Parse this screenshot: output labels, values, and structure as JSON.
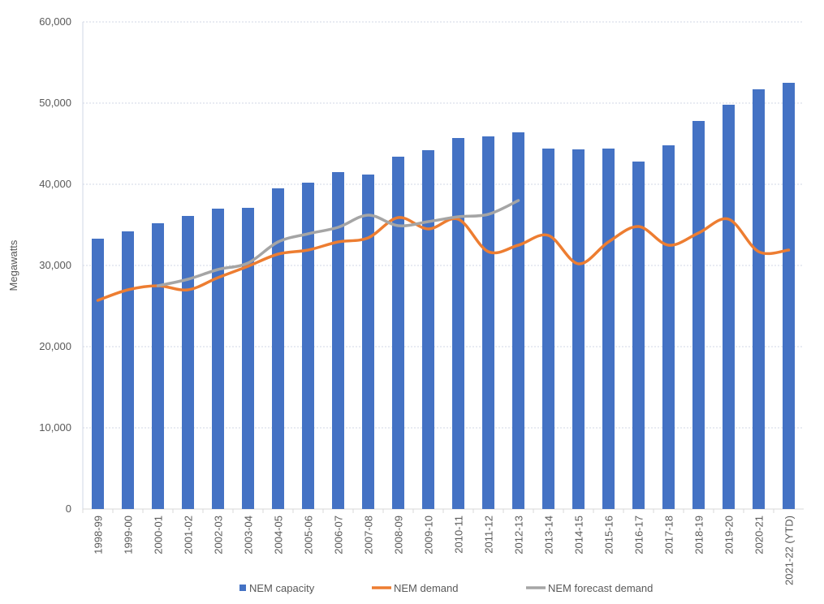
{
  "chart_data": {
    "type": "bar",
    "title": "",
    "xlabel": "",
    "ylabel": "Megawatts",
    "ylim": [
      0,
      60000
    ],
    "yticks": [
      0,
      10000,
      20000,
      30000,
      40000,
      50000,
      60000
    ],
    "ytick_labels": [
      "0",
      "10,000",
      "20,000",
      "30,000",
      "40,000",
      "50,000",
      "60,000"
    ],
    "grid": true,
    "legend_position": "bottom",
    "categories": [
      "1998-99",
      "1999-00",
      "2000-01",
      "2001-02",
      "2002-03",
      "2003-04",
      "2004-05",
      "2005-06",
      "2006-07",
      "2007-08",
      "2008-09",
      "2009-10",
      "2010-11",
      "2011-12",
      "2012-13",
      "2013-14",
      "2014-15",
      "2015-16",
      "2016-17",
      "2017-18",
      "2018-19",
      "2019-20",
      "2020-21",
      "2021-22 (YTD)"
    ],
    "series": [
      {
        "name": "NEM capacity",
        "kind": "bar",
        "color": "#4472C4",
        "values": [
          33300,
          34200,
          35200,
          36100,
          37000,
          37100,
          39500,
          40200,
          41500,
          41200,
          43400,
          44200,
          45700,
          45900,
          46400,
          44400,
          44300,
          44400,
          42800,
          44800,
          47800,
          49800,
          51700,
          52500
        ]
      },
      {
        "name": "NEM demand",
        "kind": "line",
        "color": "#ED7D31",
        "values": [
          25700,
          27000,
          27500,
          27000,
          28500,
          29900,
          31400,
          31900,
          32900,
          33400,
          35900,
          34500,
          35700,
          31700,
          32500,
          33700,
          30200,
          32900,
          34800,
          32500,
          34000,
          35700,
          31700,
          31900
        ]
      },
      {
        "name": "NEM forecast demand",
        "kind": "line",
        "color": "#A5A5A5",
        "values": [
          null,
          null,
          27500,
          28300,
          29500,
          30300,
          32900,
          33900,
          34700,
          36200,
          34900,
          35400,
          36000,
          36300,
          38000,
          null,
          null,
          null,
          null,
          null,
          null,
          null,
          null,
          null
        ]
      }
    ]
  }
}
